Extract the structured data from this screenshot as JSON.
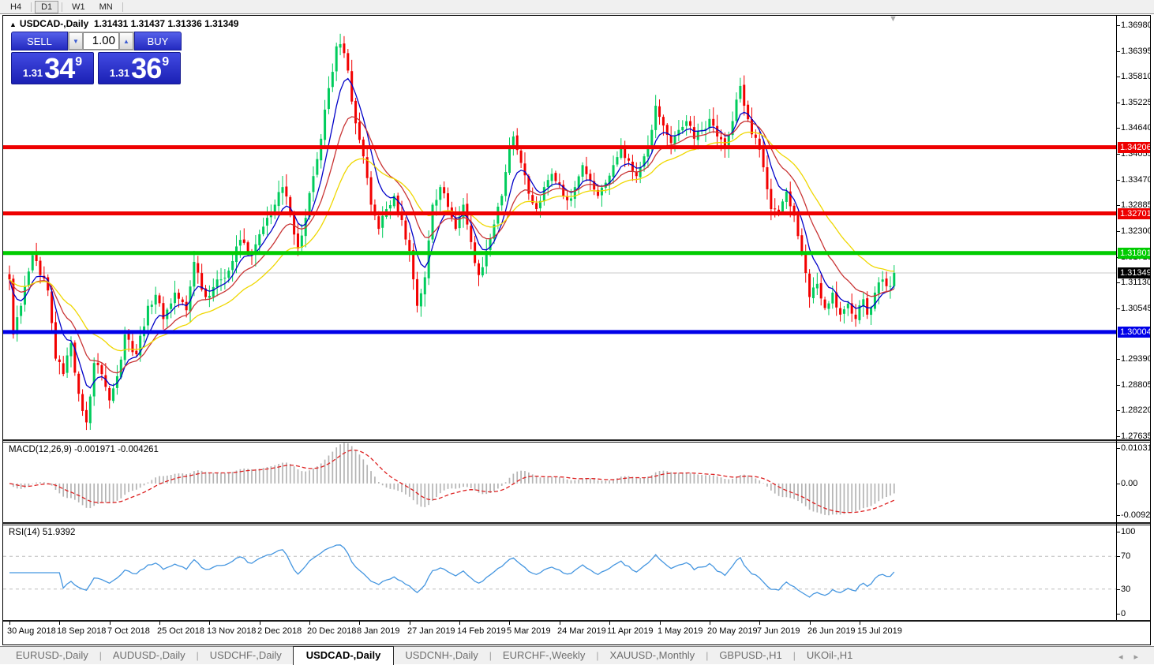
{
  "toolbar": {
    "timeframes": [
      {
        "label": "H4",
        "active": false
      },
      {
        "label": "D1",
        "active": true
      },
      {
        "label": "W1",
        "active": false
      },
      {
        "label": "MN",
        "active": false
      }
    ]
  },
  "chart": {
    "title_symbol": "USDCAD-,Daily",
    "title_ohlc": "1.31431 1.31437 1.31336 1.31349"
  },
  "trade_panel": {
    "sell_label": "SELL",
    "buy_label": "BUY",
    "volume": "1.00",
    "sell_small": "1.31",
    "sell_big": "34",
    "sell_sup": "9",
    "buy_small": "1.31",
    "buy_big": "36",
    "buy_sup": "9"
  },
  "price_scale": {
    "ticks": [
      "1.36980",
      "1.36395",
      "1.35810",
      "1.35225",
      "1.34640",
      "1.34055",
      "1.33470",
      "1.32885",
      "1.32300",
      "1.31715",
      "1.31130",
      "1.30545",
      "1.29390",
      "1.28805",
      "1.28220",
      "1.27635"
    ]
  },
  "hlines": [
    {
      "label": "1.34206",
      "price": 1.34206,
      "color": "#EE0000",
      "width": 5
    },
    {
      "label": "1.32701",
      "price": 1.32701,
      "color": "#EE0000",
      "width": 5
    },
    {
      "label": "1.31801",
      "price": 1.31801,
      "color": "#00CC00",
      "width": 5
    },
    {
      "label": "1.30004",
      "price": 1.30004,
      "color": "#0000E8",
      "width": 5
    }
  ],
  "current_price": {
    "label": "1.31349",
    "value": 1.31349,
    "line_color": "#C8C8C8",
    "flag_bg": "#000000"
  },
  "indicators": {
    "macd": {
      "label": "MACD(12,26,9)",
      "value_text": "-0.001971 -0.004261",
      "scale_top": "0.010311",
      "scale_zero": "0.00",
      "scale_bottom": "-0.009203",
      "fast": 12,
      "slow": 26,
      "signal": 9
    },
    "rsi": {
      "label": "RSI(14)",
      "value_text": "51.9392",
      "scale": [
        "100",
        "70",
        "30",
        "0"
      ],
      "levels": [
        70,
        30
      ],
      "period": 14
    }
  },
  "x_axis": {
    "labels": [
      "30 Aug 2018",
      "18 Sep 2018",
      "7 Oct 2018",
      "25 Oct 2018",
      "13 Nov 2018",
      "2 Dec 2018",
      "20 Dec 2018",
      "8 Jan 2019",
      "27 Jan 2019",
      "14 Feb 2019",
      "5 Mar 2019",
      "24 Mar 2019",
      "11 Apr 2019",
      "1 May 2019",
      "20 May 2019",
      "7 Jun 2019",
      "26 Jun 2019",
      "15 Jul 2019"
    ],
    "bars_per_label": 13
  },
  "tabs": {
    "items": [
      {
        "label": "EURUSD-,Daily",
        "active": false
      },
      {
        "label": "AUDUSD-,Daily",
        "active": false
      },
      {
        "label": "USDCHF-,Daily",
        "active": false
      },
      {
        "label": "USDCAD-,Daily",
        "active": true
      },
      {
        "label": "USDCNH-,Daily",
        "active": false
      },
      {
        "label": "EURCHF-,Weekly",
        "active": false
      },
      {
        "label": "XAUUSD-,Monthly",
        "active": false
      },
      {
        "label": "GBPUSD-,H1",
        "active": false
      },
      {
        "label": "UKOil-,H1",
        "active": false
      }
    ],
    "scroll_left": "◂",
    "scroll_right": "▸"
  },
  "colors": {
    "bull": "#00CC5C",
    "bear": "#F20000",
    "ma_fast": "#0000C8",
    "ma_mid": "#C93535",
    "ma_slow": "#EFD700",
    "macd_hist": "#B4B4B4",
    "macd_signal": "#DD2222",
    "rsi_line": "#4596E0",
    "rsi_level": "#BDBDBD"
  },
  "chart_data": {
    "type": "candlestick",
    "symbol": "USDCAD",
    "timeframe": "Daily",
    "bars": 231,
    "y_range": [
      1.27635,
      1.3698
    ],
    "x_range_labels": [
      "30 Aug 2018",
      "15 Jul 2019"
    ],
    "last_price": 1.31349,
    "swing_high": 1.3655,
    "swing_low": 1.2795,
    "h_levels": [
      1.34206,
      1.32701,
      1.31801,
      1.30004
    ],
    "close_anchors": [
      [
        0,
        1.312
      ],
      [
        1,
        1.2995
      ],
      [
        3,
        1.306
      ],
      [
        6,
        1.3175
      ],
      [
        8,
        1.313
      ],
      [
        10,
        1.3095
      ],
      [
        12,
        1.294
      ],
      [
        14,
        1.2905
      ],
      [
        16,
        1.2975
      ],
      [
        18,
        1.286
      ],
      [
        20,
        1.2795
      ],
      [
        22,
        1.293
      ],
      [
        24,
        1.2905
      ],
      [
        26,
        1.2845
      ],
      [
        28,
        1.29
      ],
      [
        30,
        1.2995
      ],
      [
        33,
        1.295
      ],
      [
        36,
        1.306
      ],
      [
        38,
        1.3085
      ],
      [
        40,
        1.303
      ],
      [
        43,
        1.309
      ],
      [
        46,
        1.305
      ],
      [
        48,
        1.316
      ],
      [
        51,
        1.308
      ],
      [
        54,
        1.312
      ],
      [
        57,
        1.314
      ],
      [
        60,
        1.321
      ],
      [
        63,
        1.3175
      ],
      [
        66,
        1.324
      ],
      [
        69,
        1.329
      ],
      [
        71,
        1.333
      ],
      [
        73,
        1.327
      ],
      [
        75,
        1.319
      ],
      [
        77,
        1.326
      ],
      [
        79,
        1.3355
      ],
      [
        81,
        1.344
      ],
      [
        83,
        1.3555
      ],
      [
        85,
        1.365
      ],
      [
        86,
        1.3655
      ],
      [
        88,
        1.3595
      ],
      [
        90,
        1.3475
      ],
      [
        92,
        1.34
      ],
      [
        94,
        1.329
      ],
      [
        96,
        1.3235
      ],
      [
        98,
        1.328
      ],
      [
        100,
        1.331
      ],
      [
        102,
        1.3255
      ],
      [
        104,
        1.3185
      ],
      [
        106,
        1.306
      ],
      [
        108,
        1.3125
      ],
      [
        110,
        1.329
      ],
      [
        112,
        1.333
      ],
      [
        114,
        1.3285
      ],
      [
        116,
        1.3235
      ],
      [
        118,
        1.329
      ],
      [
        120,
        1.3205
      ],
      [
        122,
        1.313
      ],
      [
        124,
        1.3185
      ],
      [
        126,
        1.3245
      ],
      [
        128,
        1.331
      ],
      [
        130,
        1.342
      ],
      [
        131,
        1.3445
      ],
      [
        133,
        1.3385
      ],
      [
        135,
        1.3315
      ],
      [
        137,
        1.328
      ],
      [
        139,
        1.333
      ],
      [
        141,
        1.336
      ],
      [
        143,
        1.3335
      ],
      [
        145,
        1.33
      ],
      [
        147,
        1.333
      ],
      [
        149,
        1.338
      ],
      [
        151,
        1.3345
      ],
      [
        153,
        1.331
      ],
      [
        155,
        1.334
      ],
      [
        157,
        1.338
      ],
      [
        159,
        1.342
      ],
      [
        161,
        1.339
      ],
      [
        163,
        1.3355
      ],
      [
        165,
        1.34
      ],
      [
        167,
        1.346
      ],
      [
        168,
        1.3515
      ],
      [
        170,
        1.347
      ],
      [
        172,
        1.343
      ],
      [
        174,
        1.346
      ],
      [
        176,
        1.348
      ],
      [
        178,
        1.344
      ],
      [
        180,
        1.346
      ],
      [
        182,
        1.3485
      ],
      [
        184,
        1.3445
      ],
      [
        186,
        1.342
      ],
      [
        188,
        1.348
      ],
      [
        190,
        1.356
      ],
      [
        191,
        1.3515
      ],
      [
        193,
        1.345
      ],
      [
        195,
        1.3415
      ],
      [
        196,
        1.3375
      ],
      [
        198,
        1.328
      ],
      [
        200,
        1.327
      ],
      [
        202,
        1.332
      ],
      [
        204,
        1.3265
      ],
      [
        206,
        1.318
      ],
      [
        208,
        1.308
      ],
      [
        210,
        1.311
      ],
      [
        212,
        1.3055
      ],
      [
        214,
        1.309
      ],
      [
        216,
        1.304
      ],
      [
        218,
        1.3065
      ],
      [
        220,
        1.303
      ],
      [
        222,
        1.3075
      ],
      [
        223,
        1.304
      ],
      [
        225,
        1.309
      ],
      [
        227,
        1.312
      ],
      [
        229,
        1.3105
      ],
      [
        230,
        1.31349
      ]
    ],
    "overlays": [
      {
        "name": "ma-fast",
        "type": "ema",
        "period": 7,
        "color": "#0000C8"
      },
      {
        "name": "ma-mid",
        "type": "ema",
        "period": 15,
        "color": "#C93535"
      },
      {
        "name": "ma-slow",
        "type": "ema",
        "period": 30,
        "color": "#EFD700"
      }
    ],
    "sub_indicators": [
      {
        "name": "MACD",
        "params": [
          12,
          26,
          9
        ],
        "current": [
          -0.001971,
          -0.004261
        ],
        "scale": [
          0.010311,
          0,
          -0.009203
        ]
      },
      {
        "name": "RSI",
        "params": [
          14
        ],
        "current": 51.9392,
        "scale": [
          0,
          100
        ],
        "levels": [
          30,
          70
        ]
      }
    ]
  }
}
